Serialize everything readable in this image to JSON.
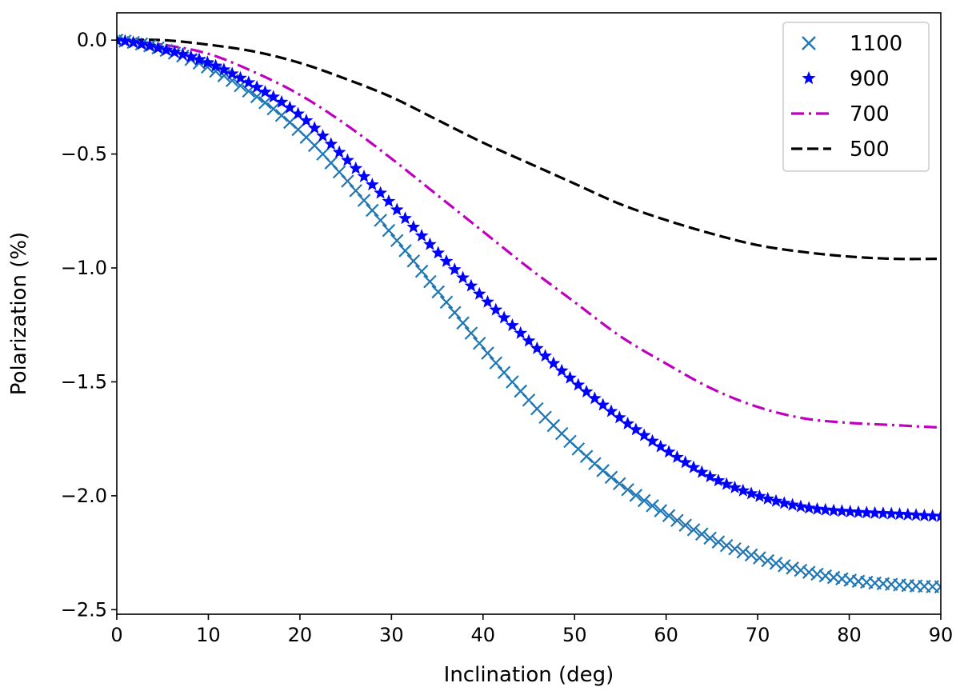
{
  "chart_data": {
    "type": "line",
    "title": "",
    "xlabel": "Inclination (deg)",
    "ylabel": "Polarization (%)",
    "xlim": [
      0,
      90
    ],
    "ylim": [
      -2.52,
      0.12
    ],
    "grid": false,
    "legend_position": "top-right",
    "x_ticks": [
      0,
      10,
      20,
      30,
      40,
      50,
      60,
      70,
      80,
      90
    ],
    "x_tick_labels": [
      "0",
      "10",
      "20",
      "30",
      "40",
      "50",
      "60",
      "70",
      "80",
      "90"
    ],
    "y_ticks": [
      0.0,
      -0.5,
      -1.0,
      -1.5,
      -2.0,
      -2.5
    ],
    "y_tick_labels": [
      "0.0",
      "−0.5",
      "−1.0",
      "−1.5",
      "−2.0",
      "−2.5"
    ],
    "x": [
      0,
      5,
      10,
      15,
      20,
      25,
      30,
      35,
      40,
      45,
      50,
      55,
      60,
      65,
      70,
      75,
      80,
      85,
      90
    ],
    "series": [
      {
        "name": "1100",
        "style": "x-markers",
        "color": "#1f77b4",
        "values": [
          0.0,
          -0.04,
          -0.12,
          -0.24,
          -0.4,
          -0.61,
          -0.85,
          -1.1,
          -1.35,
          -1.58,
          -1.78,
          -1.95,
          -2.08,
          -2.19,
          -2.27,
          -2.33,
          -2.37,
          -2.39,
          -2.4
        ]
      },
      {
        "name": "900",
        "style": "star-markers",
        "color": "#0000ff",
        "values": [
          0.0,
          -0.04,
          -0.1,
          -0.2,
          -0.33,
          -0.52,
          -0.72,
          -0.93,
          -1.13,
          -1.32,
          -1.5,
          -1.66,
          -1.8,
          -1.92,
          -2.0,
          -2.05,
          -2.07,
          -2.08,
          -2.09
        ]
      },
      {
        "name": "700",
        "style": "dash-dot",
        "color": "#bf00bf",
        "values": [
          0.0,
          -0.02,
          -0.06,
          -0.14,
          -0.24,
          -0.37,
          -0.52,
          -0.68,
          -0.84,
          -1.0,
          -1.15,
          -1.3,
          -1.42,
          -1.53,
          -1.61,
          -1.66,
          -1.68,
          -1.69,
          -1.7
        ]
      },
      {
        "name": "500",
        "style": "dashed",
        "color": "#000000",
        "values": [
          0.0,
          0.0,
          -0.02,
          -0.05,
          -0.1,
          -0.17,
          -0.25,
          -0.35,
          -0.45,
          -0.54,
          -0.63,
          -0.72,
          -0.79,
          -0.85,
          -0.9,
          -0.93,
          -0.95,
          -0.96,
          -0.96
        ]
      }
    ]
  }
}
